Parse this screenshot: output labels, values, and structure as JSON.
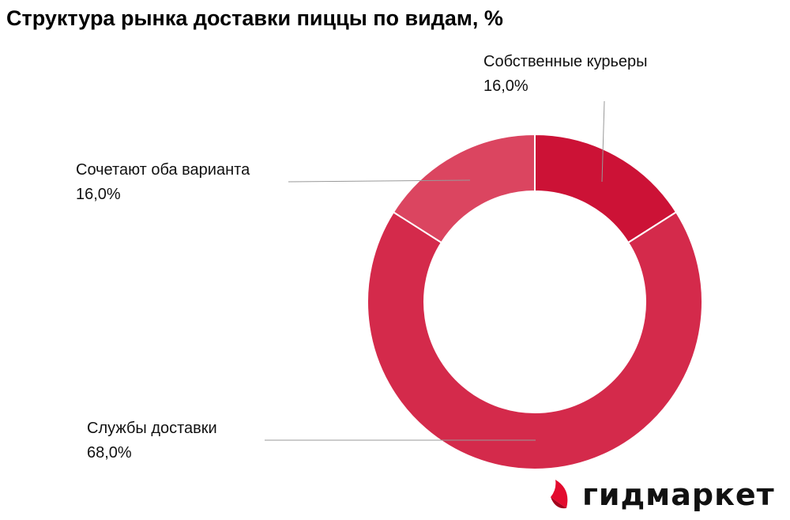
{
  "chart_data": {
    "type": "pie",
    "subtype": "donut",
    "title": "Структура рынка доставки пиццы по видам, %",
    "slices": [
      {
        "label": "Собственные курьеры",
        "value": 16.0,
        "value_label": "16,0%",
        "color": "#CC1236"
      },
      {
        "label": "Службы доставки",
        "value": 68.0,
        "value_label": "68,0%",
        "color": "#D42A4B"
      },
      {
        "label": "Сочетают оба варианта",
        "value": 16.0,
        "value_label": "16,0%",
        "color": "#DB4560"
      }
    ]
  },
  "logo": {
    "text": "гидмаркет",
    "color": "#E30B2E"
  }
}
